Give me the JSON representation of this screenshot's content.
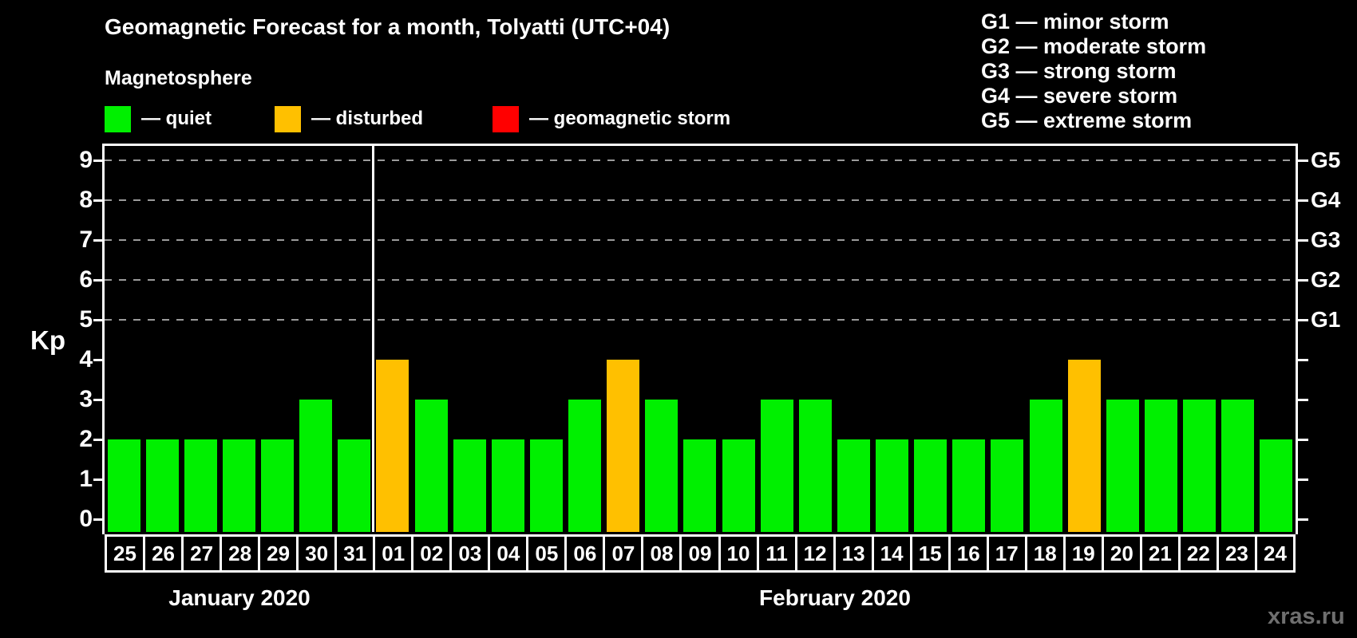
{
  "title": "Geomagnetic Forecast for a month, Tolyatti (UTC+04)",
  "legend": {
    "heading": "Magnetosphere",
    "items": [
      {
        "id": "quiet",
        "label": "— quiet",
        "color": "#00f000"
      },
      {
        "id": "disturbed",
        "label": "— disturbed",
        "color": "#ffc000"
      },
      {
        "id": "storm",
        "label": "— geomagnetic storm",
        "color": "#ff0000"
      }
    ]
  },
  "storm_scale_legend": [
    "G1 — minor storm",
    "G2 — moderate storm",
    "G3 — strong storm",
    "G4 — severe storm",
    "G5 — extreme storm"
  ],
  "watermark": "xras.ru",
  "chart_data": {
    "type": "bar",
    "title": "Geomagnetic Forecast for a month, Tolyatti (UTC+04)",
    "ylabel": "Kp",
    "ylim": [
      0,
      9.4
    ],
    "y_ticks": [
      0,
      1,
      2,
      3,
      4,
      5,
      6,
      7,
      8,
      9
    ],
    "gridlines_at": [
      5,
      6,
      7,
      8,
      9
    ],
    "grid_style": "dashed",
    "grid_color": "#9b9b9b",
    "background_color": "#000000",
    "right_axis": [
      {
        "kp": 5,
        "label": "G1"
      },
      {
        "kp": 6,
        "label": "G2"
      },
      {
        "kp": 7,
        "label": "G3"
      },
      {
        "kp": 8,
        "label": "G4"
      },
      {
        "kp": 9,
        "label": "G5"
      }
    ],
    "status_colors": {
      "quiet": "#00f000",
      "disturbed": "#ffc000",
      "storm": "#ff0000"
    },
    "months": [
      {
        "label": "January 2020",
        "days": 7
      },
      {
        "label": "February 2020",
        "days": 24
      }
    ],
    "bars": [
      {
        "day": "25",
        "kp": 2,
        "status": "quiet"
      },
      {
        "day": "26",
        "kp": 2,
        "status": "quiet"
      },
      {
        "day": "27",
        "kp": 2,
        "status": "quiet"
      },
      {
        "day": "28",
        "kp": 2,
        "status": "quiet"
      },
      {
        "day": "29",
        "kp": 2,
        "status": "quiet"
      },
      {
        "day": "30",
        "kp": 3,
        "status": "quiet"
      },
      {
        "day": "31",
        "kp": 2,
        "status": "quiet"
      },
      {
        "day": "01",
        "kp": 4,
        "status": "disturbed"
      },
      {
        "day": "02",
        "kp": 3,
        "status": "quiet"
      },
      {
        "day": "03",
        "kp": 2,
        "status": "quiet"
      },
      {
        "day": "04",
        "kp": 2,
        "status": "quiet"
      },
      {
        "day": "05",
        "kp": 2,
        "status": "quiet"
      },
      {
        "day": "06",
        "kp": 3,
        "status": "quiet"
      },
      {
        "day": "07",
        "kp": 4,
        "status": "disturbed"
      },
      {
        "day": "08",
        "kp": 3,
        "status": "quiet"
      },
      {
        "day": "09",
        "kp": 2,
        "status": "quiet"
      },
      {
        "day": "10",
        "kp": 2,
        "status": "quiet"
      },
      {
        "day": "11",
        "kp": 3,
        "status": "quiet"
      },
      {
        "day": "12",
        "kp": 3,
        "status": "quiet"
      },
      {
        "day": "13",
        "kp": 2,
        "status": "quiet"
      },
      {
        "day": "14",
        "kp": 2,
        "status": "quiet"
      },
      {
        "day": "15",
        "kp": 2,
        "status": "quiet"
      },
      {
        "day": "16",
        "kp": 2,
        "status": "quiet"
      },
      {
        "day": "17",
        "kp": 2,
        "status": "quiet"
      },
      {
        "day": "18",
        "kp": 3,
        "status": "quiet"
      },
      {
        "day": "19",
        "kp": 4,
        "status": "disturbed"
      },
      {
        "day": "20",
        "kp": 3,
        "status": "quiet"
      },
      {
        "day": "21",
        "kp": 3,
        "status": "quiet"
      },
      {
        "day": "22",
        "kp": 3,
        "status": "quiet"
      },
      {
        "day": "23",
        "kp": 3,
        "status": "quiet"
      },
      {
        "day": "24",
        "kp": 2,
        "status": "quiet"
      }
    ]
  }
}
